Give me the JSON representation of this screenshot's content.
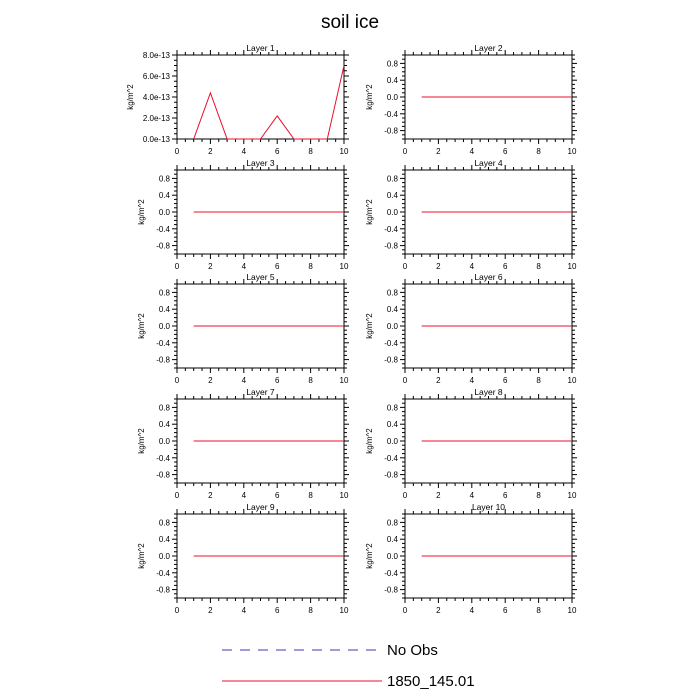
{
  "figure": {
    "title": "soil ice"
  },
  "legend": {
    "items": [
      {
        "label": "No Obs",
        "color": "#3b3bb0",
        "style": "dashed"
      },
      {
        "label": "1850_145.01",
        "color": "#e8102a",
        "style": "solid"
      }
    ]
  },
  "chart_data": [
    {
      "type": "line",
      "title": "Layer 1",
      "ylabel": "kg/m^2",
      "xlim": [
        0,
        10
      ],
      "ylim": [
        0,
        8e-13
      ],
      "xticks": [
        0,
        2,
        4,
        6,
        8,
        10
      ],
      "xtick_labels": [
        "0",
        "2",
        "4",
        "6",
        "8",
        "10"
      ],
      "yticks": [
        0,
        2e-13,
        4e-13,
        6e-13,
        8e-13
      ],
      "ytick_labels": [
        "0.0e-13",
        "2.0e-13",
        "4.0e-13",
        "6.0e-13",
        "8.0e-13"
      ],
      "series": [
        {
          "name": "1850_145.01",
          "color": "#e8102a",
          "x": [
            1,
            2,
            3,
            4,
            5,
            6,
            7,
            8,
            9,
            10
          ],
          "y": [
            0,
            4.4e-13,
            0,
            0,
            0,
            2.2e-13,
            0,
            0,
            0,
            7e-13
          ]
        }
      ]
    },
    {
      "type": "line",
      "title": "Layer 2",
      "ylabel": "kg/m^2",
      "xlim": [
        0,
        10
      ],
      "ylim": [
        -1,
        1
      ],
      "xticks": [
        0,
        2,
        4,
        6,
        8,
        10
      ],
      "xtick_labels": [
        "0",
        "2",
        "4",
        "6",
        "8",
        "10"
      ],
      "yticks": [
        -0.8,
        -0.4,
        0,
        0.4,
        0.8
      ],
      "ytick_labels": [
        "-0.8",
        "-0.4",
        "0.0",
        "0.4",
        "0.8"
      ],
      "series": [
        {
          "name": "1850_145.01",
          "color": "#e8102a",
          "x": [
            1,
            2,
            3,
            4,
            5,
            6,
            7,
            8,
            9,
            10
          ],
          "y": [
            0,
            0,
            0,
            0,
            0,
            0,
            0,
            0,
            0,
            0
          ]
        }
      ]
    },
    {
      "type": "line",
      "title": "Layer 3",
      "ylabel": "kg/m^2",
      "xlim": [
        0,
        10
      ],
      "ylim": [
        -1,
        1
      ],
      "xticks": [
        0,
        2,
        4,
        6,
        8,
        10
      ],
      "xtick_labels": [
        "0",
        "2",
        "4",
        "6",
        "8",
        "10"
      ],
      "yticks": [
        -0.8,
        -0.4,
        0,
        0.4,
        0.8
      ],
      "ytick_labels": [
        "-0.8",
        "-0.4",
        "0.0",
        "0.4",
        "0.8"
      ],
      "series": [
        {
          "name": "1850_145.01",
          "color": "#e8102a",
          "x": [
            1,
            2,
            3,
            4,
            5,
            6,
            7,
            8,
            9,
            10
          ],
          "y": [
            0,
            0,
            0,
            0,
            0,
            0,
            0,
            0,
            0,
            0
          ]
        }
      ]
    },
    {
      "type": "line",
      "title": "Layer 4",
      "ylabel": "kg/m^2",
      "xlim": [
        0,
        10
      ],
      "ylim": [
        -1,
        1
      ],
      "xticks": [
        0,
        2,
        4,
        6,
        8,
        10
      ],
      "xtick_labels": [
        "0",
        "2",
        "4",
        "6",
        "8",
        "10"
      ],
      "yticks": [
        -0.8,
        -0.4,
        0,
        0.4,
        0.8
      ],
      "ytick_labels": [
        "-0.8",
        "-0.4",
        "0.0",
        "0.4",
        "0.8"
      ],
      "series": [
        {
          "name": "1850_145.01",
          "color": "#e8102a",
          "x": [
            1,
            2,
            3,
            4,
            5,
            6,
            7,
            8,
            9,
            10
          ],
          "y": [
            0,
            0,
            0,
            0,
            0,
            0,
            0,
            0,
            0,
            0
          ]
        }
      ]
    },
    {
      "type": "line",
      "title": "Layer 5",
      "ylabel": "kg/m^2",
      "xlim": [
        0,
        10
      ],
      "ylim": [
        -1,
        1
      ],
      "xticks": [
        0,
        2,
        4,
        6,
        8,
        10
      ],
      "xtick_labels": [
        "0",
        "2",
        "4",
        "6",
        "8",
        "10"
      ],
      "yticks": [
        -0.8,
        -0.4,
        0,
        0.4,
        0.8
      ],
      "ytick_labels": [
        "-0.8",
        "-0.4",
        "0.0",
        "0.4",
        "0.8"
      ],
      "series": [
        {
          "name": "1850_145.01",
          "color": "#e8102a",
          "x": [
            1,
            2,
            3,
            4,
            5,
            6,
            7,
            8,
            9,
            10
          ],
          "y": [
            0,
            0,
            0,
            0,
            0,
            0,
            0,
            0,
            0,
            0
          ]
        }
      ]
    },
    {
      "type": "line",
      "title": "Layer 6",
      "ylabel": "kg/m^2",
      "xlim": [
        0,
        10
      ],
      "ylim": [
        -1,
        1
      ],
      "xticks": [
        0,
        2,
        4,
        6,
        8,
        10
      ],
      "xtick_labels": [
        "0",
        "2",
        "4",
        "6",
        "8",
        "10"
      ],
      "yticks": [
        -0.8,
        -0.4,
        0,
        0.4,
        0.8
      ],
      "ytick_labels": [
        "-0.8",
        "-0.4",
        "0.0",
        "0.4",
        "0.8"
      ],
      "series": [
        {
          "name": "1850_145.01",
          "color": "#e8102a",
          "x": [
            1,
            2,
            3,
            4,
            5,
            6,
            7,
            8,
            9,
            10
          ],
          "y": [
            0,
            0,
            0,
            0,
            0,
            0,
            0,
            0,
            0,
            0
          ]
        }
      ]
    },
    {
      "type": "line",
      "title": "Layer 7",
      "ylabel": "kg/m^2",
      "xlim": [
        0,
        10
      ],
      "ylim": [
        -1,
        1
      ],
      "xticks": [
        0,
        2,
        4,
        6,
        8,
        10
      ],
      "xtick_labels": [
        "0",
        "2",
        "4",
        "6",
        "8",
        "10"
      ],
      "yticks": [
        -0.8,
        -0.4,
        0,
        0.4,
        0.8
      ],
      "ytick_labels": [
        "-0.8",
        "-0.4",
        "0.0",
        "0.4",
        "0.8"
      ],
      "series": [
        {
          "name": "1850_145.01",
          "color": "#e8102a",
          "x": [
            1,
            2,
            3,
            4,
            5,
            6,
            7,
            8,
            9,
            10
          ],
          "y": [
            0,
            0,
            0,
            0,
            0,
            0,
            0,
            0,
            0,
            0
          ]
        }
      ]
    },
    {
      "type": "line",
      "title": "Layer 8",
      "ylabel": "kg/m^2",
      "xlim": [
        0,
        10
      ],
      "ylim": [
        -1,
        1
      ],
      "xticks": [
        0,
        2,
        4,
        6,
        8,
        10
      ],
      "xtick_labels": [
        "0",
        "2",
        "4",
        "6",
        "8",
        "10"
      ],
      "yticks": [
        -0.8,
        -0.4,
        0,
        0.4,
        0.8
      ],
      "ytick_labels": [
        "-0.8",
        "-0.4",
        "0.0",
        "0.4",
        "0.8"
      ],
      "series": [
        {
          "name": "1850_145.01",
          "color": "#e8102a",
          "x": [
            1,
            2,
            3,
            4,
            5,
            6,
            7,
            8,
            9,
            10
          ],
          "y": [
            0,
            0,
            0,
            0,
            0,
            0,
            0,
            0,
            0,
            0
          ]
        }
      ]
    },
    {
      "type": "line",
      "title": "Layer 9",
      "ylabel": "kg/m^2",
      "xlim": [
        0,
        10
      ],
      "ylim": [
        -1,
        1
      ],
      "xticks": [
        0,
        2,
        4,
        6,
        8,
        10
      ],
      "xtick_labels": [
        "0",
        "2",
        "4",
        "6",
        "8",
        "10"
      ],
      "yticks": [
        -0.8,
        -0.4,
        0,
        0.4,
        0.8
      ],
      "ytick_labels": [
        "-0.8",
        "-0.4",
        "0.0",
        "0.4",
        "0.8"
      ],
      "series": [
        {
          "name": "1850_145.01",
          "color": "#e8102a",
          "x": [
            1,
            2,
            3,
            4,
            5,
            6,
            7,
            8,
            9,
            10
          ],
          "y": [
            0,
            0,
            0,
            0,
            0,
            0,
            0,
            0,
            0,
            0
          ]
        }
      ]
    },
    {
      "type": "line",
      "title": "Layer 10",
      "ylabel": "kg/m^2",
      "xlim": [
        0,
        10
      ],
      "ylim": [
        -1,
        1
      ],
      "xticks": [
        0,
        2,
        4,
        6,
        8,
        10
      ],
      "xtick_labels": [
        "0",
        "2",
        "4",
        "6",
        "8",
        "10"
      ],
      "yticks": [
        -0.8,
        -0.4,
        0,
        0.4,
        0.8
      ],
      "ytick_labels": [
        "-0.8",
        "-0.4",
        "0.0",
        "0.4",
        "0.8"
      ],
      "series": [
        {
          "name": "1850_145.01",
          "color": "#e8102a",
          "x": [
            1,
            2,
            3,
            4,
            5,
            6,
            7,
            8,
            9,
            10
          ],
          "y": [
            0,
            0,
            0,
            0,
            0,
            0,
            0,
            0,
            0,
            0
          ]
        }
      ]
    }
  ]
}
